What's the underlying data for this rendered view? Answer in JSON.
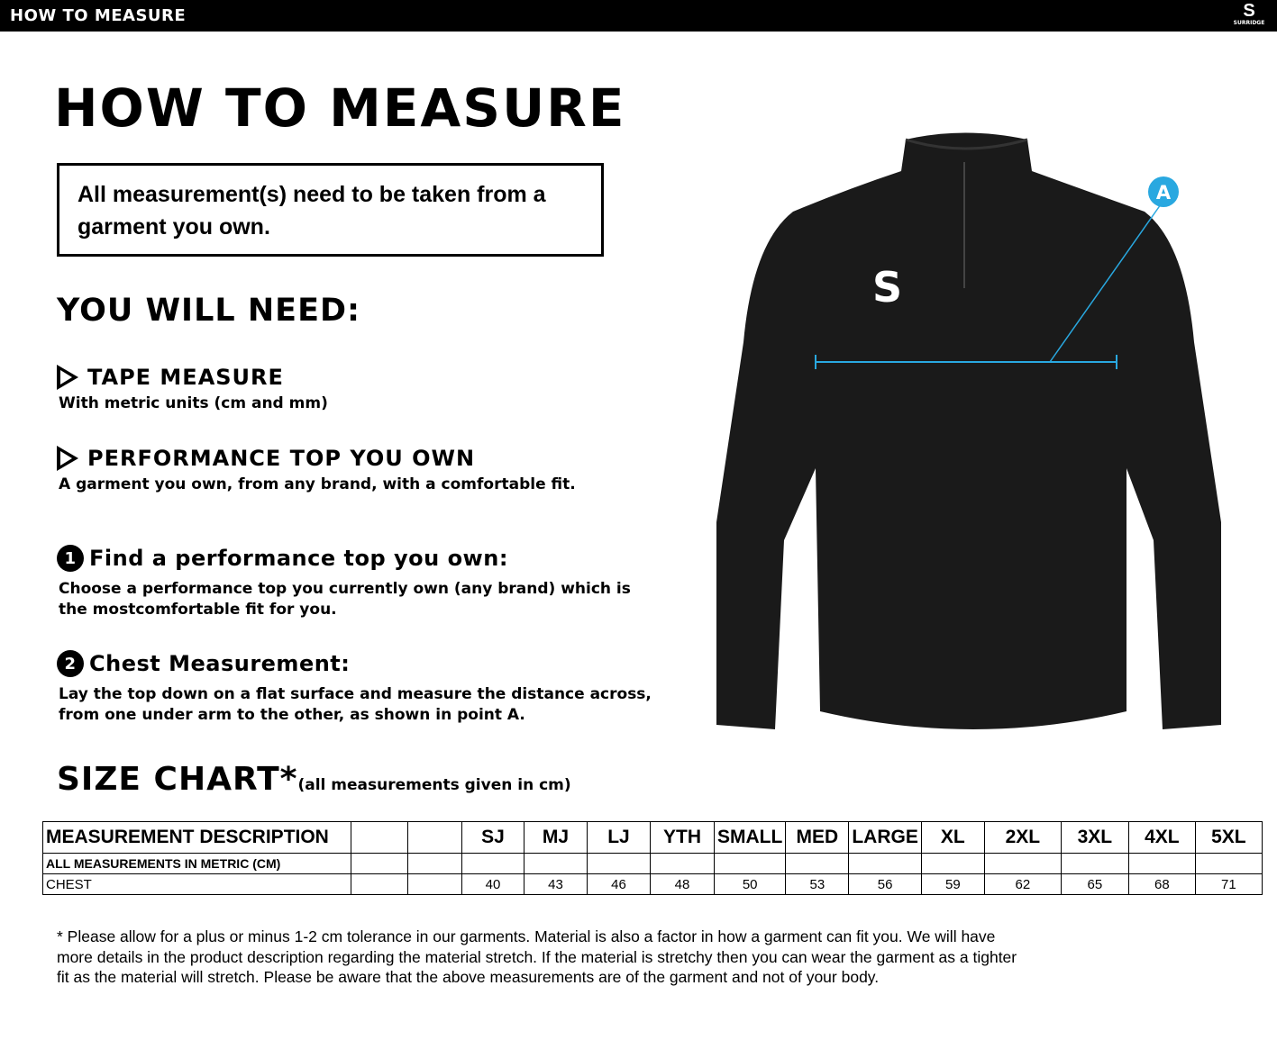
{
  "header": {
    "title": "HOW TO MEASURE",
    "brand": "SURRIDGE"
  },
  "page_title": "HOW TO MEASURE",
  "notice": "All measurement(s) need to be taken from a garment you own.",
  "you_will_need": "YOU WILL NEED:",
  "items": [
    {
      "title": "TAPE MEASURE",
      "desc": "With metric units (cm and mm)"
    },
    {
      "title": "PERFORMANCE TOP YOU OWN",
      "desc": "A garment you own, from any brand, with a comfortable fit."
    }
  ],
  "steps": [
    {
      "num": "1",
      "title": "Find a performance top you own:",
      "desc": "Choose a performance top  you currently own (any brand) which is the mostcomfortable fit for you."
    },
    {
      "num": "2",
      "title": "Chest Measurement:",
      "desc": "Lay the top down on a flat surface and measure the distance across, from one under arm to the other, as shown in point A."
    }
  ],
  "diagram": {
    "point_label": "A",
    "accent": "#29a8e0"
  },
  "size_chart": {
    "title": "SIZE CHART*",
    "subtitle": "(all measurements given in cm)",
    "header": "MEASUREMENT DESCRIPTION",
    "sizes": [
      "SJ",
      "MJ",
      "LJ",
      "YTH",
      "SMALL",
      "MED",
      "LARGE",
      "XL",
      "2XL",
      "3XL",
      "4XL",
      "5XL"
    ],
    "metric_row": "ALL MEASUREMENTS IN METRIC (CM)",
    "rows": [
      {
        "label": "CHEST",
        "values": [
          "40",
          "43",
          "46",
          "48",
          "50",
          "53",
          "56",
          "59",
          "62",
          "65",
          "68",
          "71"
        ]
      }
    ]
  },
  "footnote": "* Please allow for a plus or minus 1-2 cm tolerance in our garments. Material is also a factor in how a garment can fit you. We will have more details in the product description regarding the material stretch.  If the material is stretchy then you can wear the garment as a tighter fit as the material will stretch.  Please be aware that the above measurements are of the garment and not of your body."
}
